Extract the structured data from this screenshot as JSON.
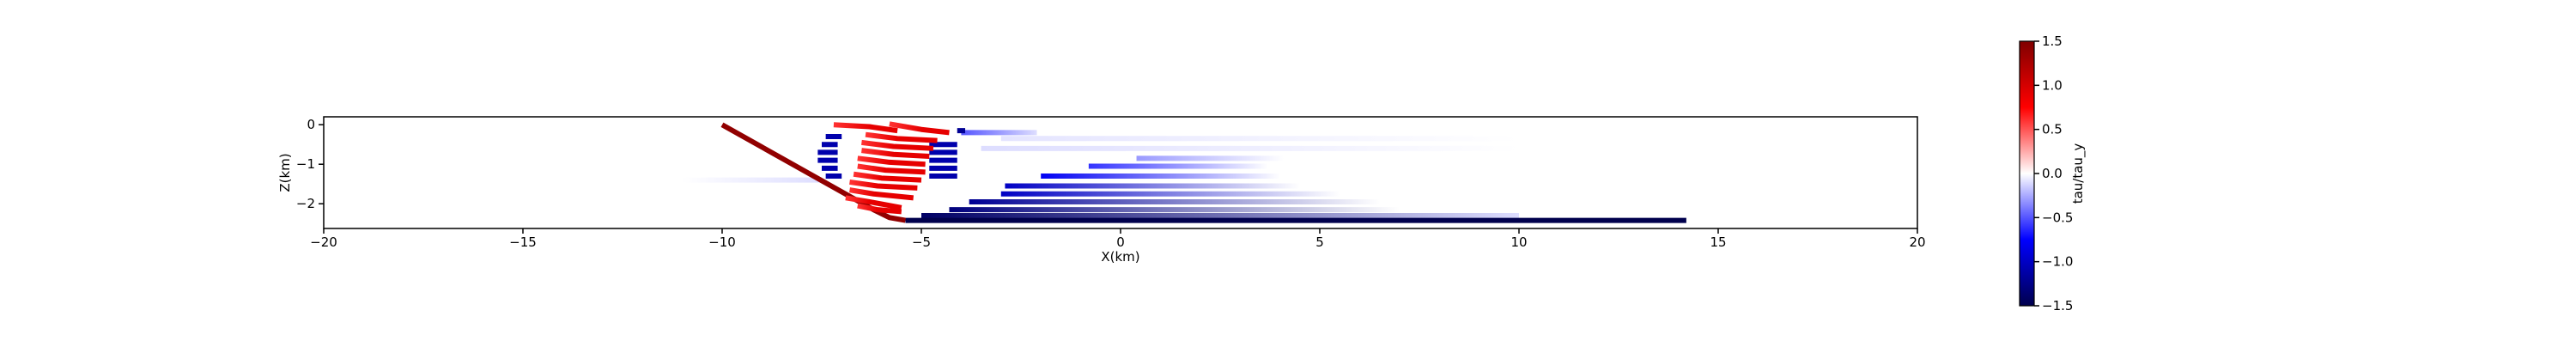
{
  "chart_data": {
    "type": "strips",
    "cmap": "seismic",
    "xlabel": "X(km)",
    "ylabel": "Z(km)",
    "colorbar_label": "tau/tau_y",
    "xlim": [
      -20,
      20
    ],
    "xticks": [
      {
        "value": -20,
        "label": "−20"
      },
      {
        "value": -15,
        "label": "−15"
      },
      {
        "value": -10,
        "label": "−10"
      },
      {
        "value": -5,
        "label": "−5"
      },
      0,
      5,
      10,
      15,
      20
    ],
    "ylim": [
      -2.625,
      0.2
    ],
    "yticks": [
      0,
      {
        "value": -1,
        "label": "−1"
      },
      {
        "value": -2,
        "label": "−2"
      }
    ],
    "clim": [
      -1.5,
      1.5
    ],
    "cticks": [
      1.5,
      {
        "value": 1.0,
        "label": "1.0"
      },
      {
        "value": 0.5,
        "label": "0.5"
      },
      {
        "value": 0.0,
        "label": "0.0"
      },
      {
        "value": -0.5,
        "label": "−0.5"
      },
      {
        "value": -1.0,
        "label": "−1.0"
      },
      {
        "value": -1.5,
        "label": "−1.5"
      }
    ],
    "strips": [
      {
        "x": [
          -3.5,
          10
        ],
        "z": [
          -0.6,
          -0.6
        ],
        "c": [
          -0.1,
          0
        ]
      },
      {
        "x": [
          -3.0,
          10
        ],
        "z": [
          -0.35,
          -0.35
        ],
        "c": [
          -0.08,
          0
        ]
      },
      {
        "x": [
          -11,
          -7.5
        ],
        "z": [
          -1.4,
          -1.4
        ],
        "c": [
          0,
          -0.1
        ]
      },
      {
        "x": [
          -4.0,
          -2.1
        ],
        "z": [
          -0.2,
          -0.2
        ],
        "c": [
          -0.5,
          -0.1
        ]
      },
      {
        "x": [
          0.4,
          4.1
        ],
        "z": [
          -0.85,
          -0.85
        ],
        "c": [
          -0.3,
          0
        ]
      },
      {
        "x": [
          -0.8,
          3.7
        ],
        "z": [
          -1.05,
          -1.05
        ],
        "c": [
          -0.6,
          0
        ]
      },
      {
        "x": [
          -2.0,
          4.0
        ],
        "z": [
          -1.3,
          -1.3
        ],
        "c": [
          -0.8,
          0
        ]
      },
      {
        "x": [
          -2.9,
          4.5
        ],
        "z": [
          -1.55,
          -1.55
        ],
        "c": [
          -1.0,
          0
        ]
      },
      {
        "x": [
          -3.0,
          5.5
        ],
        "z": [
          -1.75,
          -1.75
        ],
        "c": [
          -1.0,
          0
        ]
      },
      {
        "x": [
          -3.8,
          6.5
        ],
        "z": [
          -1.95,
          -1.95
        ],
        "c": [
          -1.2,
          0
        ]
      },
      {
        "x": [
          -4.3,
          7.0
        ],
        "z": [
          -2.15,
          -2.15
        ],
        "c": [
          -1.3,
          0
        ]
      },
      {
        "x": [
          -5.0,
          10.0
        ],
        "z": [
          -2.3,
          -2.3
        ],
        "c": [
          -1.4,
          -0.1
        ]
      },
      {
        "x": [
          -5.4,
          14.2
        ],
        "z": [
          -2.42,
          -2.42
        ],
        "c": [
          -1.5,
          -1.5
        ]
      },
      {
        "x": [
          -10,
          -6.2,
          -5.8,
          -5.4
        ],
        "z": [
          0,
          -2.15,
          -2.35,
          -2.42
        ],
        "c": [
          1.4,
          1.4,
          1.4,
          1.4
        ]
      },
      {
        "x": [
          -7.4,
          -7.0
        ],
        "z": [
          -0.3,
          -0.3
        ],
        "c": [
          -1.1,
          -1.1
        ]
      },
      {
        "x": [
          -7.5,
          -7.1
        ],
        "z": [
          -0.5,
          -0.5
        ],
        "c": [
          -1.1,
          -1.1
        ]
      },
      {
        "x": [
          -7.6,
          -7.1
        ],
        "z": [
          -0.7,
          -0.7
        ],
        "c": [
          -1.1,
          -1.1
        ]
      },
      {
        "x": [
          -7.6,
          -7.1
        ],
        "z": [
          -0.9,
          -0.9
        ],
        "c": [
          -1.1,
          -1.1
        ]
      },
      {
        "x": [
          -7.5,
          -7.1
        ],
        "z": [
          -1.1,
          -1.1
        ],
        "c": [
          -1.1,
          -1.1
        ]
      },
      {
        "x": [
          -7.4,
          -7.0
        ],
        "z": [
          -1.3,
          -1.3
        ],
        "c": [
          -1.1,
          -1.1
        ]
      },
      {
        "x": [
          -4.1,
          -3.9
        ],
        "z": [
          -0.15,
          -0.15
        ],
        "c": [
          -1.2,
          -1.2
        ]
      },
      {
        "x": [
          -4.8,
          -4.1
        ],
        "z": [
          -0.5,
          -0.5
        ],
        "c": [
          -1.1,
          -1.1
        ]
      },
      {
        "x": [
          -4.8,
          -4.1
        ],
        "z": [
          -0.7,
          -0.7
        ],
        "c": [
          -1.1,
          -1.1
        ]
      },
      {
        "x": [
          -4.8,
          -4.1
        ],
        "z": [
          -0.9,
          -0.9
        ],
        "c": [
          -1.1,
          -1.1
        ]
      },
      {
        "x": [
          -4.8,
          -4.1
        ],
        "z": [
          -1.1,
          -1.1
        ],
        "c": [
          -1.1,
          -1.1
        ]
      },
      {
        "x": [
          -4.8,
          -4.1
        ],
        "z": [
          -1.3,
          -1.3
        ],
        "c": [
          -1.1,
          -1.1
        ]
      },
      {
        "x": [
          -7.2,
          -6.3,
          -5.6
        ],
        "z": [
          0,
          -0.05,
          -0.15
        ],
        "c": [
          0.6,
          0.9,
          0.9
        ]
      },
      {
        "x": [
          -5.8,
          -5.0,
          -4.3
        ],
        "z": [
          0.02,
          -0.12,
          -0.2
        ],
        "c": [
          0.6,
          0.9,
          0.9
        ]
      },
      {
        "x": [
          -6.4,
          -5.6,
          -4.6
        ],
        "z": [
          -0.25,
          -0.35,
          -0.4
        ],
        "c": [
          0.6,
          0.9,
          0.9
        ]
      },
      {
        "x": [
          -6.5,
          -5.7,
          -4.7
        ],
        "z": [
          -0.45,
          -0.55,
          -0.6
        ],
        "c": [
          0.6,
          0.9,
          0.9
        ]
      },
      {
        "x": [
          -6.5,
          -5.7,
          -4.8
        ],
        "z": [
          -0.65,
          -0.75,
          -0.8
        ],
        "c": [
          0.6,
          0.9,
          0.9
        ]
      },
      {
        "x": [
          -6.6,
          -5.8,
          -4.9
        ],
        "z": [
          -0.85,
          -0.95,
          -1.0
        ],
        "c": [
          0.6,
          0.9,
          0.9
        ]
      },
      {
        "x": [
          -6.6,
          -5.9,
          -4.9
        ],
        "z": [
          -1.05,
          -1.15,
          -1.2
        ],
        "c": [
          0.6,
          0.9,
          0.9
        ]
      },
      {
        "x": [
          -6.7,
          -6.0,
          -5.0
        ],
        "z": [
          -1.25,
          -1.35,
          -1.4
        ],
        "c": [
          0.6,
          0.9,
          0.9
        ]
      },
      {
        "x": [
          -6.8,
          -6.1,
          -5.1
        ],
        "z": [
          -1.45,
          -1.55,
          -1.6
        ],
        "c": [
          0.6,
          0.9,
          0.9
        ]
      },
      {
        "x": [
          -6.8,
          -6.2,
          -5.2
        ],
        "z": [
          -1.65,
          -1.75,
          -1.85
        ],
        "c": [
          0.6,
          0.9,
          0.9
        ]
      },
      {
        "x": [
          -6.9,
          -6.3,
          -5.5
        ],
        "z": [
          -1.85,
          -1.95,
          -2.1
        ],
        "c": [
          0.6,
          0.9,
          0.9
        ]
      },
      {
        "x": [
          -6.6,
          -6.1,
          -5.5
        ],
        "z": [
          -2.05,
          -2.15,
          -2.2
        ],
        "c": [
          0.6,
          0.9,
          0.9
        ]
      }
    ]
  }
}
